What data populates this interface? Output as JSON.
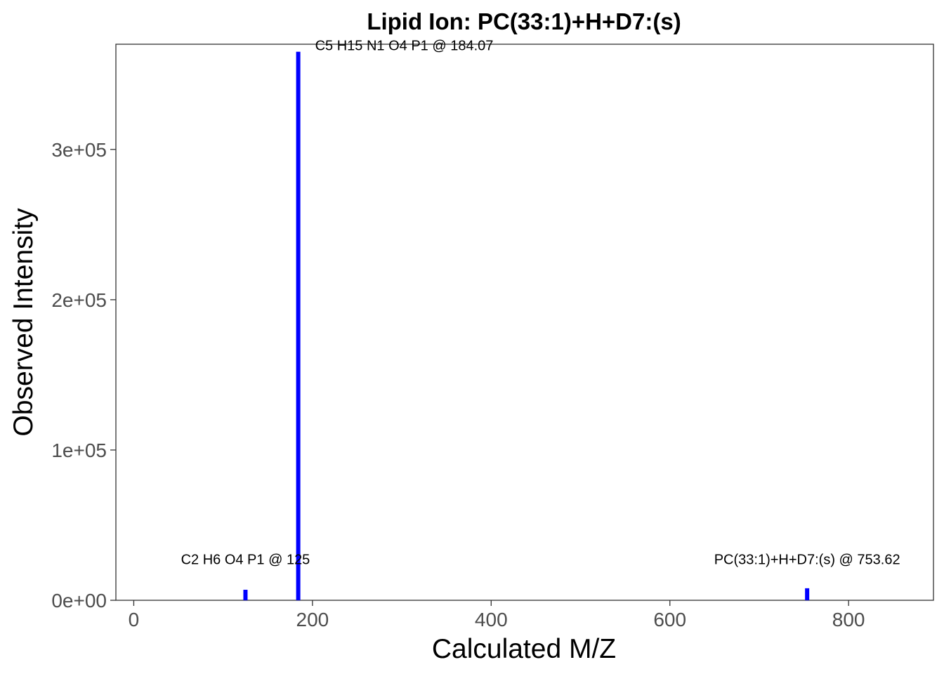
{
  "chart_data": {
    "type": "bar",
    "title": "Lipid Ion: PC(33:1)+H+D7:(s)",
    "xlabel": "Calculated M/Z",
    "ylabel": "Observed Intensity",
    "xlim": [
      -20,
      895
    ],
    "ylim": [
      0,
      370000
    ],
    "x_ticks": [
      0,
      200,
      400,
      600,
      800
    ],
    "x_tick_labels": [
      "0",
      "200",
      "400",
      "600",
      "800"
    ],
    "y_ticks": [
      0,
      100000,
      200000,
      300000
    ],
    "y_tick_labels": [
      "0e+00",
      "1e+05",
      "2e+05",
      "3e+05"
    ],
    "grid": false,
    "color": "#0000ff",
    "points": [
      {
        "x": 125,
        "y": 7000,
        "label": "C2 H6 O4 P1 @ 125"
      },
      {
        "x": 184.07,
        "y": 365000,
        "label": "C5 H15 N1 O4 P1 @ 184.07"
      },
      {
        "x": 753.62,
        "y": 8000,
        "label": "PC(33:1)+H+D7:(s) @ 753.62"
      }
    ]
  }
}
